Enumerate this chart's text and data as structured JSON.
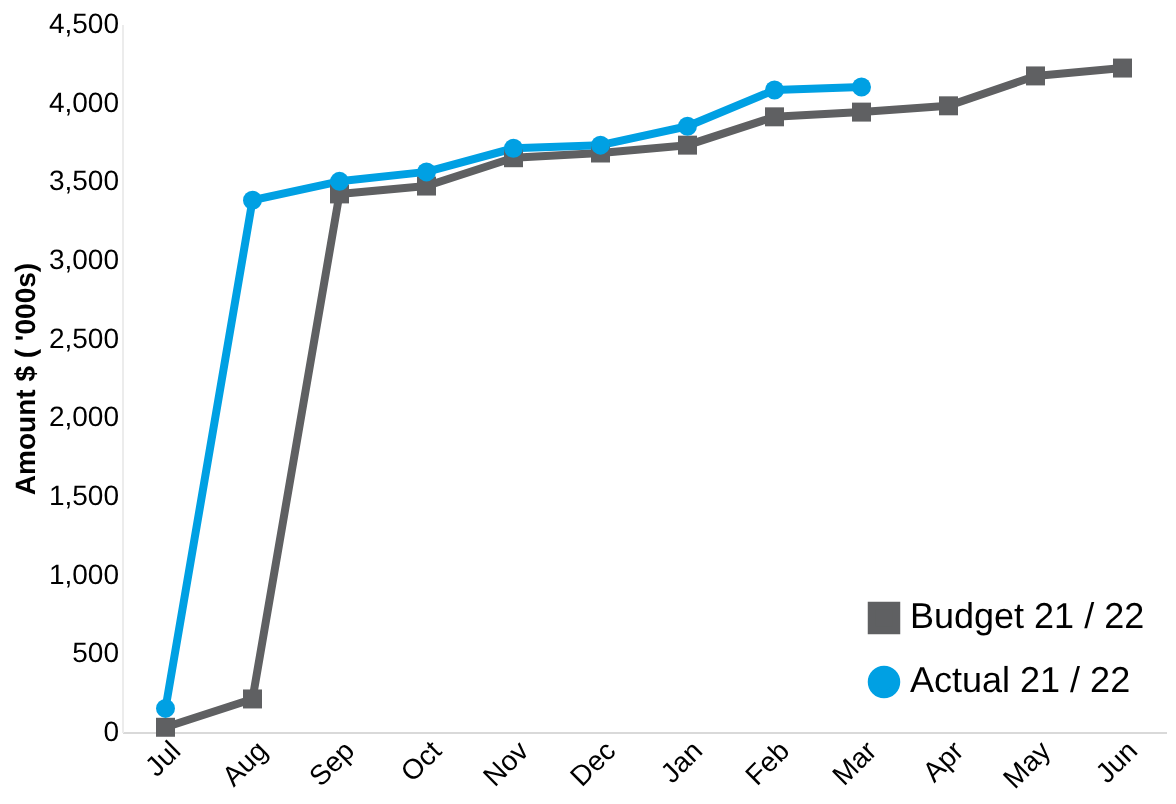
{
  "chart_data": {
    "type": "line",
    "ylabel": "Amount $ ( '000s)",
    "categories": [
      "Jul",
      "Aug",
      "Sep",
      "Oct",
      "Nov",
      "Dec",
      "Jan",
      "Feb",
      "Mar",
      "Apr",
      "May",
      "Jun"
    ],
    "series": [
      {
        "name": "Budget 21 / 22",
        "color": "#5f6062",
        "marker": "square",
        "values": [
          30,
          210,
          3420,
          3470,
          3650,
          3680,
          3730,
          3910,
          3940,
          3980,
          4170,
          4220
        ]
      },
      {
        "name": "Actual 21 / 22",
        "color": "#00a0e3",
        "marker": "circle",
        "values": [
          150,
          3380,
          3500,
          3560,
          3710,
          3730,
          3850,
          4080,
          4100,
          null,
          null,
          null
        ]
      }
    ],
    "ylim": [
      0,
      4500
    ],
    "yticks": [
      0,
      500,
      {
        "value": 1000,
        "label": "1,000"
      },
      {
        "value": 1500,
        "label": "1,500"
      },
      {
        "value": 2000,
        "label": "2,000"
      },
      {
        "value": 2500,
        "label": "2,500"
      },
      {
        "value": 3000,
        "label": "3,000"
      },
      {
        "value": 3500,
        "label": "3,500"
      },
      {
        "value": 4000,
        "label": "4,000"
      },
      {
        "value": 4500,
        "label": "4,500"
      }
    ],
    "grid": false,
    "legend": "bottom right",
    "line_style": "solid"
  }
}
